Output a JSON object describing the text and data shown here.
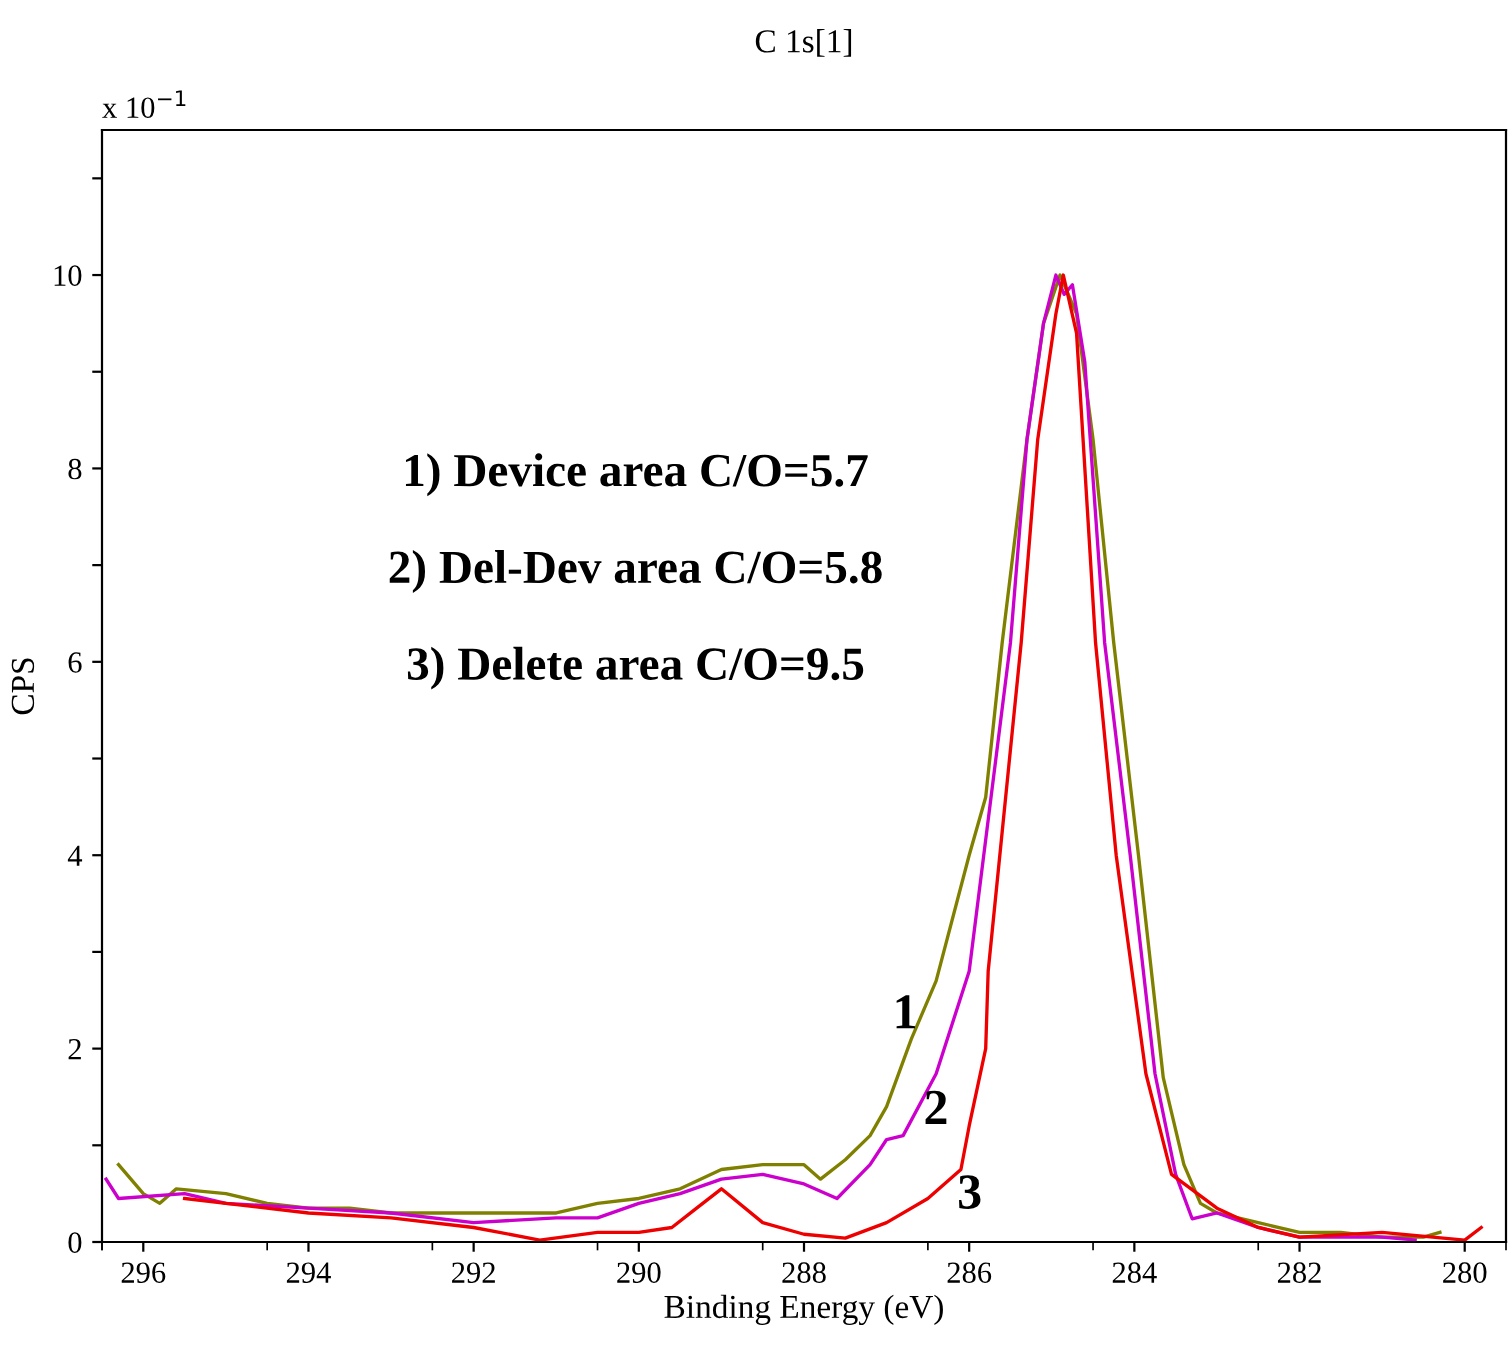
{
  "chart_data": {
    "type": "line",
    "title": "C 1s[1]",
    "xlabel": "Binding Energy (eV)",
    "ylabel": "CPS",
    "xlim": [
      296.48,
      279.5
    ],
    "xticks": [
      296,
      294,
      292,
      290,
      288,
      286,
      284,
      282,
      280
    ],
    "ylim": [
      0,
      11.5
    ],
    "yticks": [
      0,
      {
        "value": 1,
        "label": null
      },
      2,
      {
        "value": 3,
        "label": null
      },
      4,
      {
        "value": 5,
        "label": null
      },
      6,
      {
        "value": 7,
        "label": null
      },
      8,
      {
        "value": 9,
        "label": null
      },
      10,
      {
        "value": 11,
        "label": null
      }
    ],
    "grid": false,
    "legend": false,
    "marker": "none",
    "line_style": "solid",
    "annotations": [
      "x 10$^{−1}$",
      "1) Device area C/O=5.7",
      "2) Del-Dev area C/O=5.8",
      "3) Delete area C/O=9.5",
      "1",
      "2",
      "3"
    ],
    "series": [
      {
        "color": "#808000",
        "x": [
          296.3,
          296.0,
          295.8,
          295.6,
          295.0,
          294.5,
          294.0,
          293.5,
          293.0,
          292.5,
          292.0,
          291.5,
          291.0,
          290.5,
          290.0,
          289.5,
          289.0,
          288.5,
          288.0,
          287.8,
          287.5,
          287.2,
          287.0,
          286.7,
          286.4,
          286.0,
          285.8,
          285.6,
          285.3,
          285.1,
          284.9,
          284.7,
          284.5,
          284.25,
          283.95,
          283.65,
          283.4,
          283.2,
          283.0,
          282.5,
          282.0,
          281.5,
          281.0,
          280.5,
          280.3
        ],
        "values": [
          0.8,
          0.5,
          0.4,
          0.55,
          0.5,
          0.4,
          0.35,
          0.35,
          0.3,
          0.3,
          0.3,
          0.3,
          0.3,
          0.4,
          0.45,
          0.55,
          0.75,
          0.8,
          0.8,
          0.65,
          0.85,
          1.1,
          1.4,
          2.1,
          2.7,
          4.0,
          4.6,
          6.2,
          8.3,
          9.5,
          10.0,
          9.6,
          8.3,
          6.2,
          4.0,
          1.7,
          0.8,
          0.4,
          0.3,
          0.2,
          0.1,
          0.1,
          0.05,
          0.05,
          0.1
        ]
      },
      {
        "color": "#cc00cc",
        "x": [
          296.45,
          296.3,
          295.5,
          295.0,
          294.0,
          293.0,
          292.0,
          291.0,
          290.5,
          290.0,
          289.5,
          289.0,
          288.5,
          288.0,
          287.6,
          287.2,
          287.0,
          286.8,
          286.4,
          286.0,
          285.5,
          285.3,
          285.1,
          284.95,
          284.85,
          284.75,
          284.6,
          284.36,
          284.05,
          283.75,
          283.5,
          283.3,
          283.0,
          282.5,
          282.0,
          281.0,
          280.6
        ],
        "values": [
          0.65,
          0.45,
          0.5,
          0.4,
          0.35,
          0.3,
          0.2,
          0.25,
          0.25,
          0.4,
          0.5,
          0.65,
          0.7,
          0.6,
          0.45,
          0.8,
          1.06,
          1.1,
          1.74,
          2.8,
          6.2,
          8.3,
          9.5,
          10.0,
          9.8,
          9.9,
          9.1,
          6.2,
          4.0,
          1.74,
          0.7,
          0.24,
          0.3,
          0.15,
          0.05,
          0.05,
          0.02
        ]
      },
      {
        "color": "#ee0000",
        "x": [
          295.5,
          295.0,
          294.0,
          293.0,
          292.0,
          291.2,
          290.5,
          290.0,
          289.6,
          289.3,
          289.0,
          288.5,
          288.0,
          287.5,
          287.0,
          286.5,
          286.1,
          286.0,
          285.8,
          285.77,
          285.37,
          285.17,
          284.95,
          284.86,
          284.7,
          284.47,
          284.22,
          283.86,
          283.55,
          283.0,
          282.5,
          282.0,
          281.0,
          280.0,
          279.8
        ],
        "values": [
          0.45,
          0.4,
          0.3,
          0.25,
          0.15,
          0.02,
          0.1,
          0.1,
          0.15,
          0.35,
          0.55,
          0.2,
          0.08,
          0.04,
          0.2,
          0.45,
          0.75,
          1.2,
          2.0,
          2.8,
          6.2,
          8.3,
          9.6,
          10.0,
          9.4,
          6.2,
          4.0,
          1.74,
          0.7,
          0.35,
          0.15,
          0.05,
          0.1,
          0.02,
          0.15
        ]
      }
    ]
  }
}
